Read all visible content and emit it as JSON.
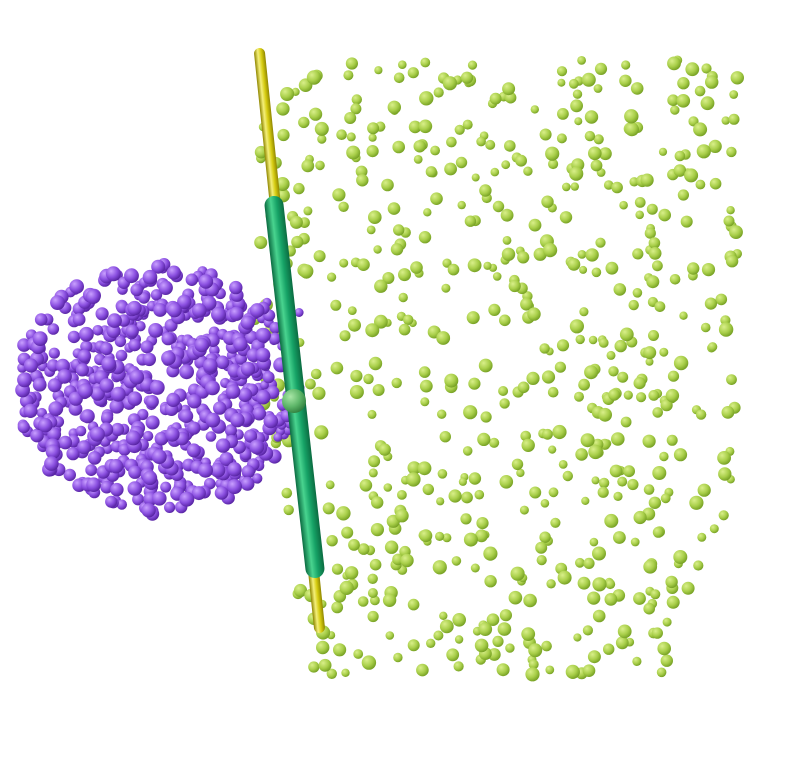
{
  "scene": {
    "background": "#ffffff",
    "large_cloud": {
      "name": "green-point-cloud",
      "color_light": "#d9ef8a",
      "color_mid": "#a9cf4a",
      "color_dark": "#6f9a1e",
      "point_count": 640,
      "seed": 17
    },
    "small_cloud": {
      "name": "purple-point-cloud",
      "color_light": "#c9a0ff",
      "color_mid": "#8a4fe0",
      "color_dark": "#4f1d99",
      "point_count": 620,
      "seed": 91
    },
    "axis_rod": {
      "name": "yellow-axis-rod",
      "color_light": "#f4ef7a",
      "color_mid": "#d6cc10",
      "color_dark": "#8f8600"
    },
    "axis_segment": {
      "name": "green-axis-segment",
      "color_light": "#49d48f",
      "color_mid": "#16a266",
      "color_dark": "#0b6b41"
    },
    "center_marker": {
      "name": "center-sphere",
      "color_light": "#a8e6a6",
      "color_mid": "#5fb76a",
      "color_dark": "#2c7a3a"
    }
  }
}
